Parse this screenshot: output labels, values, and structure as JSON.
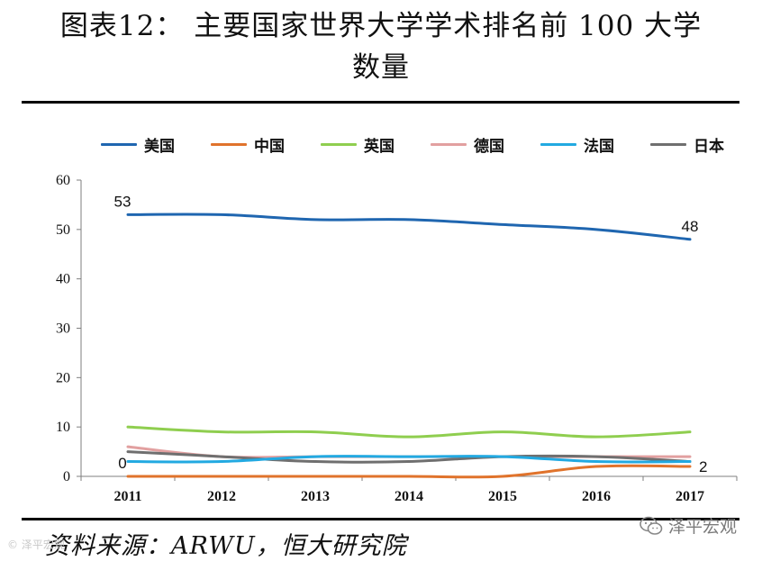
{
  "title_line1": "图表12： 主要国家世界大学学术排名前 100 大学",
  "title_line2": "数量",
  "source": "资料来源：ARWU，恒大研究院",
  "watermark": "泽平宏观",
  "corner_mark": "© 泽平宏观",
  "chart_data": {
    "type": "line",
    "title": "图表12： 主要国家世界大学学术排名前 100 大学数量",
    "categories": [
      "2011",
      "2012",
      "2013",
      "2014",
      "2015",
      "2016",
      "2017"
    ],
    "ylim": [
      0,
      60
    ],
    "yticks": [
      0,
      10,
      20,
      30,
      40,
      50,
      60
    ],
    "grid": false,
    "legend_position": "top",
    "series": [
      {
        "name": "美国",
        "color": "#1f66b0",
        "values": [
          53,
          53,
          52,
          52,
          51,
          50,
          48
        ]
      },
      {
        "name": "中国",
        "color": "#e0732c",
        "values": [
          0,
          0,
          0,
          0,
          0,
          2,
          2
        ]
      },
      {
        "name": "英国",
        "color": "#8fce4f",
        "values": [
          10,
          9,
          9,
          8,
          9,
          8,
          9
        ]
      },
      {
        "name": "德国",
        "color": "#e2a0a0",
        "values": [
          6,
          4,
          4,
          4,
          4,
          4,
          4
        ]
      },
      {
        "name": "法国",
        "color": "#22a9e1",
        "values": [
          3,
          3,
          4,
          4,
          4,
          3,
          3
        ]
      },
      {
        "name": "日本",
        "color": "#6f6f6f",
        "values": [
          5,
          4,
          3,
          3,
          4,
          4,
          3
        ]
      }
    ],
    "annotations": [
      {
        "series": "美国",
        "category": "2011",
        "text": "53",
        "side": "above"
      },
      {
        "series": "美国",
        "category": "2017",
        "text": "48",
        "side": "above"
      },
      {
        "series": "中国",
        "category": "2011",
        "text": "0",
        "side": "above"
      },
      {
        "series": "中国",
        "category": "2017",
        "text": "2",
        "side": "right"
      }
    ]
  }
}
